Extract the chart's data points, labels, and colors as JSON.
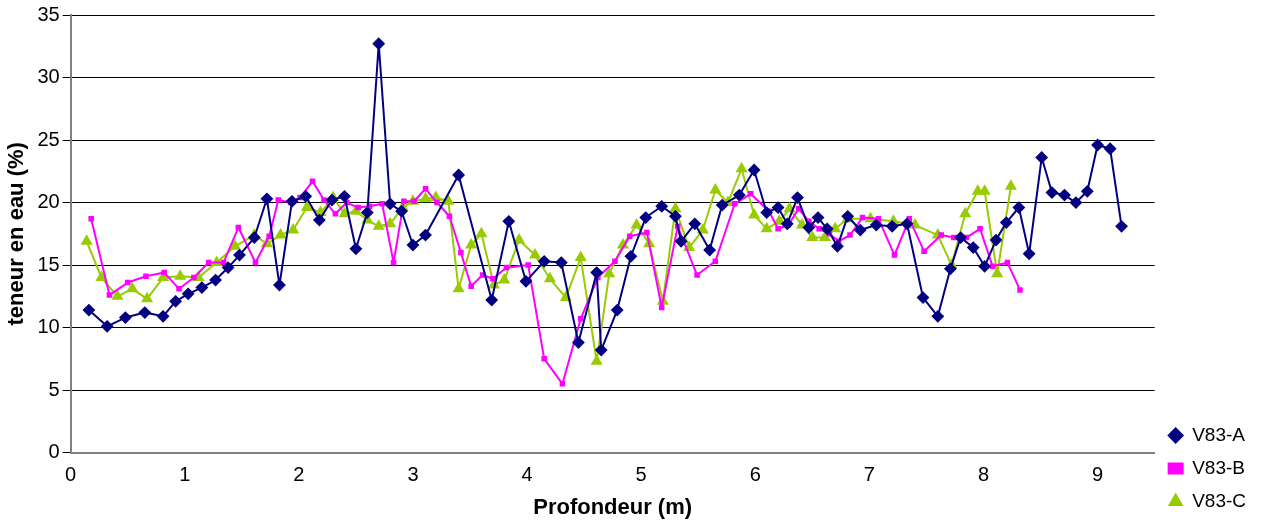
{
  "chart_data": {
    "type": "line",
    "xlabel": "Profondeur (m)",
    "ylabel": "teneur en eau (%)",
    "xlim": [
      0,
      9.5
    ],
    "xticks": [
      0,
      1,
      2,
      3,
      4,
      5,
      6,
      7,
      8,
      9
    ],
    "ylim": [
      0,
      35
    ],
    "yticks": [
      0,
      5,
      10,
      15,
      20,
      25,
      30,
      35
    ],
    "grid": "y",
    "legend": "right",
    "line_style": "solid",
    "series": [
      {
        "name": "V83-A",
        "color": "#000080",
        "marker": "diamond",
        "x": [
          0.16,
          0.32,
          0.48,
          0.65,
          0.81,
          0.92,
          1.03,
          1.15,
          1.27,
          1.38,
          1.48,
          1.61,
          1.72,
          1.83,
          1.94,
          2.06,
          2.18,
          2.29,
          2.4,
          2.5,
          2.6,
          2.7,
          2.8,
          2.9,
          3.0,
          3.11,
          3.4,
          3.69,
          3.84,
          3.99,
          4.15,
          4.3,
          4.45,
          4.61,
          4.65,
          4.79,
          4.91,
          5.04,
          5.18,
          5.3,
          5.35,
          5.47,
          5.6,
          5.71,
          5.86,
          5.99,
          6.1,
          6.2,
          6.28,
          6.37,
          6.47,
          6.55,
          6.63,
          6.72,
          6.81,
          6.92,
          7.06,
          7.2,
          7.33,
          7.47,
          7.6,
          7.71,
          7.8,
          7.91,
          8.01,
          8.11,
          8.2,
          8.31,
          8.4,
          8.51,
          8.6,
          8.71,
          8.81,
          8.91,
          9.0,
          9.11,
          9.21
        ],
        "values": [
          11.4,
          10.1,
          10.8,
          11.2,
          10.9,
          12.1,
          12.7,
          13.2,
          13.8,
          14.8,
          15.8,
          17.2,
          20.3,
          13.4,
          20.1,
          20.5,
          18.6,
          20.2,
          20.5,
          16.3,
          19.2,
          32.7,
          19.9,
          19.3,
          16.6,
          17.4,
          22.2,
          12.2,
          18.5,
          13.7,
          15.3,
          15.2,
          8.8,
          14.4,
          8.2,
          11.4,
          15.7,
          18.8,
          19.7,
          18.9,
          16.9,
          18.3,
          16.2,
          19.8,
          20.6,
          22.6,
          19.2,
          19.6,
          18.3,
          20.4,
          18.0,
          18.8,
          17.9,
          16.5,
          18.9,
          17.8,
          18.2,
          18.1,
          18.3,
          12.4,
          10.9,
          14.7,
          17.2,
          16.4,
          14.9,
          17.0,
          18.4,
          19.6,
          15.9,
          23.6,
          20.8,
          20.6,
          20.0,
          20.9,
          24.6,
          24.3,
          18.1
        ]
      },
      {
        "name": "V83-B",
        "color": "#ff00ff",
        "marker": "square",
        "x": [
          0.18,
          0.34,
          0.5,
          0.66,
          0.82,
          0.95,
          1.08,
          1.21,
          1.34,
          1.47,
          1.62,
          1.74,
          1.82,
          1.93,
          2.01,
          2.12,
          2.22,
          2.32,
          2.42,
          2.52,
          2.62,
          2.73,
          2.83,
          2.92,
          3.01,
          3.11,
          3.21,
          3.32,
          3.42,
          3.51,
          3.61,
          3.7,
          3.82,
          4.01,
          4.15,
          4.31,
          4.47,
          4.62,
          4.77,
          4.9,
          5.05,
          5.18,
          5.32,
          5.49,
          5.65,
          5.82,
          5.96,
          6.12,
          6.2,
          6.29,
          6.38,
          6.47,
          6.56,
          6.65,
          6.73,
          6.83,
          6.94,
          7.08,
          7.22,
          7.35,
          7.48,
          7.63,
          7.74,
          7.85,
          7.97,
          8.08,
          8.21,
          8.32
        ],
        "values": [
          18.7,
          12.6,
          13.6,
          14.1,
          14.4,
          13.1,
          14.0,
          15.2,
          15.2,
          18.0,
          15.2,
          17.3,
          20.2,
          20.0,
          20.4,
          21.7,
          20.2,
          19.1,
          20.0,
          19.6,
          19.7,
          19.9,
          15.2,
          20.1,
          20.1,
          21.1,
          20.0,
          18.9,
          16.0,
          13.3,
          14.2,
          13.9,
          14.8,
          15.0,
          7.5,
          5.5,
          10.7,
          14.0,
          15.3,
          17.3,
          17.6,
          11.6,
          18.1,
          14.2,
          15.3,
          19.9,
          20.7,
          19.3,
          17.9,
          18.2,
          19.5,
          18.5,
          17.9,
          17.5,
          16.9,
          17.4,
          18.8,
          18.7,
          15.8,
          18.7,
          16.1,
          17.4,
          17.2,
          17.2,
          17.9,
          14.9,
          15.2,
          13.0
        ]
      },
      {
        "name": "V83-C",
        "color": "#99cc00",
        "marker": "triangle",
        "x": [
          0.14,
          0.27,
          0.41,
          0.54,
          0.67,
          0.81,
          0.96,
          1.12,
          1.28,
          1.44,
          1.61,
          1.72,
          1.84,
          1.95,
          2.07,
          2.19,
          2.3,
          2.4,
          2.5,
          2.6,
          2.7,
          2.8,
          2.91,
          3.0,
          3.11,
          3.2,
          3.31,
          3.4,
          3.51,
          3.6,
          3.71,
          3.8,
          3.93,
          4.07,
          4.2,
          4.34,
          4.47,
          4.61,
          4.72,
          4.84,
          4.96,
          5.07,
          5.19,
          5.3,
          5.42,
          5.54,
          5.65,
          5.76,
          5.88,
          5.99,
          6.1,
          6.21,
          6.3,
          6.41,
          6.5,
          6.61,
          6.7,
          6.81,
          7.01,
          7.21,
          7.4,
          7.6,
          7.72,
          7.84,
          7.95,
          8.01,
          8.12,
          8.24
        ],
        "values": [
          16.9,
          14.0,
          12.5,
          13.1,
          12.3,
          14.0,
          14.1,
          14.0,
          15.2,
          16.5,
          17.4,
          16.7,
          17.4,
          17.8,
          19.6,
          19.2,
          20.4,
          19.1,
          19.3,
          18.6,
          18.1,
          18.3,
          19.6,
          20.1,
          20.3,
          20.4,
          20.1,
          13.1,
          16.6,
          17.5,
          13.4,
          13.8,
          17.0,
          15.8,
          13.9,
          12.4,
          15.6,
          7.3,
          14.3,
          16.6,
          18.2,
          16.7,
          12.1,
          19.5,
          16.4,
          17.8,
          21.0,
          20.0,
          22.7,
          19.0,
          17.9,
          18.5,
          19.5,
          18.2,
          17.2,
          17.2,
          17.9,
          18.7,
          18.7,
          18.5,
          18.2,
          17.4,
          15.0,
          19.1,
          20.9,
          20.9,
          14.3,
          21.3
        ]
      }
    ]
  }
}
